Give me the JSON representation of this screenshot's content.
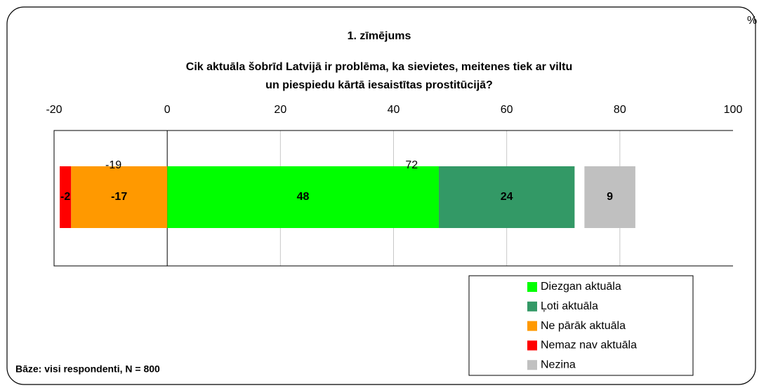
{
  "chart_data": {
    "type": "stacked-barh",
    "title": [
      "1. zīmējums",
      "Cik aktuāla šobrīd Latvijā ir problēma, ka sievietes, meitenes tiek ar viltu",
      "un piespiedu kārtā iesaistītas prostitūcijā?"
    ],
    "unit": "%",
    "note": "Bāze: visi respondenti, N = 800",
    "xlim": [
      -20,
      100
    ],
    "xticks": [
      -20,
      0,
      20,
      40,
      60,
      80,
      100
    ],
    "grid": true,
    "totals": [
      -19,
      72
    ],
    "series": [
      {
        "name": "Diezgan aktuāla",
        "color": "#00ff00",
        "values": [
          48
        ]
      },
      {
        "name": "Ļoti aktuāla",
        "color": "#339966",
        "values": [
          24
        ]
      },
      {
        "name": "Ne pārāk aktuāla",
        "color": "#ff9900",
        "values": [
          -17
        ]
      },
      {
        "name": "Nemaz nav aktuāla",
        "color": "#ff0000",
        "values": [
          -2
        ]
      },
      {
        "name": "Nezina",
        "color": "#c0c0c0",
        "values": [
          9
        ],
        "stack": false
      }
    ],
    "legend": "bottom-right"
  }
}
